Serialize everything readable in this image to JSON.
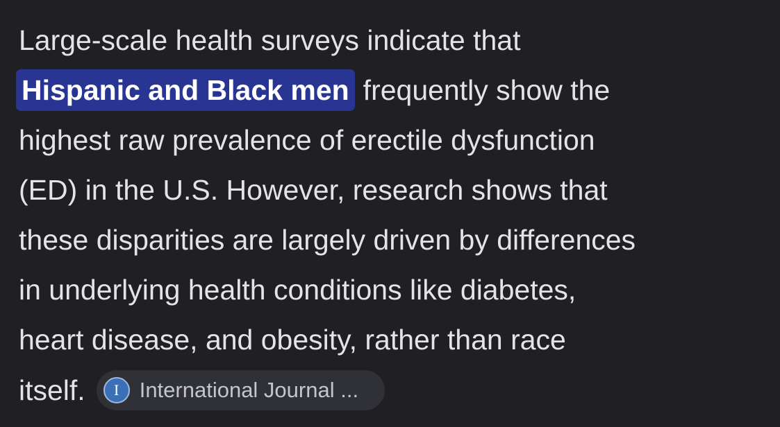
{
  "paragraph": {
    "lines": [
      "Large-scale health surveys indicate that",
      "frequently show the",
      "highest raw prevalence of erectile dysfunction",
      "(ED) in the U.S. However, research shows that",
      "these disparities are largely driven by differences",
      "in underlying health conditions like diabetes,",
      "heart disease, and obesity, rather than race",
      "itself."
    ],
    "highlight": "Hispanic and Black men"
  },
  "citation": {
    "icon": "I",
    "label": "International Journal ..."
  }
}
